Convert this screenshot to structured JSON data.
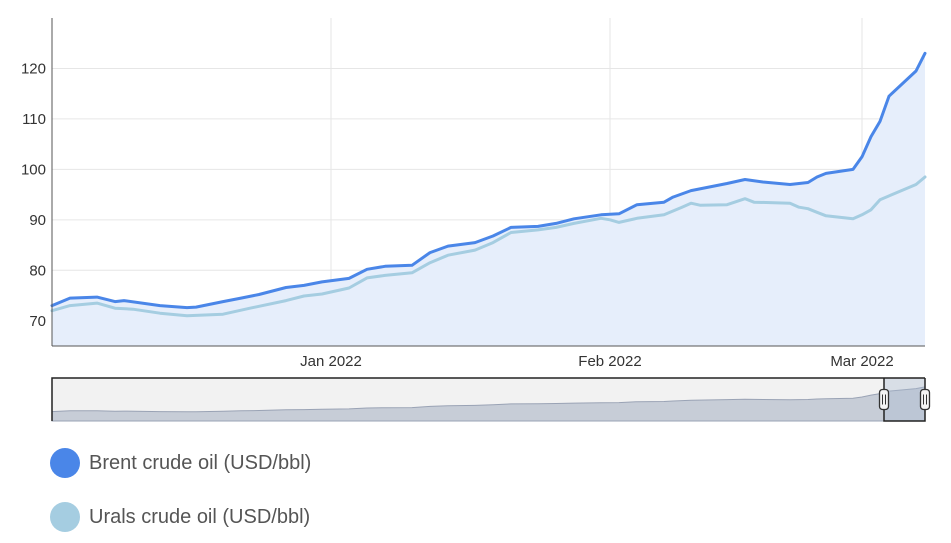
{
  "chart_data": {
    "type": "line",
    "title": "",
    "xlabel": "",
    "ylabel": "",
    "x_range": [
      "2021-12-01",
      "2022-03-08"
    ],
    "ylim": [
      65,
      130
    ],
    "y_ticks": [
      70,
      80,
      90,
      100,
      110,
      120
    ],
    "x_ticks": [
      {
        "date": "2022-01-01",
        "label": "Jan 2022"
      },
      {
        "date": "2022-02-01",
        "label": "Feb 2022"
      },
      {
        "date": "2022-03-01",
        "label": "Mar 2022"
      }
    ],
    "grid": true,
    "series": [
      {
        "name": "Brent crude oil (USD/bbl)",
        "color": "#4a86e8",
        "fill": true,
        "points": [
          [
            "2021-12-01",
            73.0
          ],
          [
            "2021-12-03",
            74.5
          ],
          [
            "2021-12-06",
            74.7
          ],
          [
            "2021-12-08",
            73.8
          ],
          [
            "2021-12-09",
            74.0
          ],
          [
            "2021-12-13",
            73.0
          ],
          [
            "2021-12-16",
            72.6
          ],
          [
            "2021-12-17",
            72.7
          ],
          [
            "2021-12-20",
            73.8
          ],
          [
            "2021-12-22",
            74.5
          ],
          [
            "2021-12-24",
            75.2
          ],
          [
            "2021-12-27",
            76.6
          ],
          [
            "2021-12-29",
            77.0
          ],
          [
            "2021-12-31",
            77.7
          ],
          [
            "2022-01-03",
            78.4
          ],
          [
            "2022-01-05",
            80.2
          ],
          [
            "2022-01-07",
            80.8
          ],
          [
            "2022-01-10",
            81.0
          ],
          [
            "2022-01-12",
            83.5
          ],
          [
            "2022-01-14",
            84.8
          ],
          [
            "2022-01-17",
            85.5
          ],
          [
            "2022-01-19",
            86.8
          ],
          [
            "2022-01-21",
            88.5
          ],
          [
            "2022-01-24",
            88.7
          ],
          [
            "2022-01-26",
            89.3
          ],
          [
            "2022-01-28",
            90.2
          ],
          [
            "2022-01-31",
            91.0
          ],
          [
            "2022-02-02",
            91.2
          ],
          [
            "2022-02-04",
            93.0
          ],
          [
            "2022-02-07",
            93.5
          ],
          [
            "2022-02-08",
            94.5
          ],
          [
            "2022-02-10",
            95.8
          ],
          [
            "2022-02-14",
            97.2
          ],
          [
            "2022-02-16",
            98.0
          ],
          [
            "2022-02-18",
            97.5
          ],
          [
            "2022-02-21",
            97.0
          ],
          [
            "2022-02-23",
            97.4
          ],
          [
            "2022-02-24",
            98.5
          ],
          [
            "2022-02-25",
            99.2
          ],
          [
            "2022-02-28",
            100.0
          ],
          [
            "2022-03-01",
            102.5
          ],
          [
            "2022-03-02",
            106.5
          ],
          [
            "2022-03-03",
            109.5
          ],
          [
            "2022-03-04",
            114.5
          ],
          [
            "2022-03-07",
            119.5
          ],
          [
            "2022-03-08",
            123.0
          ]
        ]
      },
      {
        "name": "Urals crude oil (USD/bbl)",
        "color": "#a5cde1",
        "fill": false,
        "points": [
          [
            "2021-12-01",
            72.0
          ],
          [
            "2021-12-03",
            73.0
          ],
          [
            "2021-12-06",
            73.5
          ],
          [
            "2021-12-08",
            72.5
          ],
          [
            "2021-12-10",
            72.3
          ],
          [
            "2021-12-13",
            71.5
          ],
          [
            "2021-12-16",
            71.0
          ],
          [
            "2021-12-20",
            71.3
          ],
          [
            "2021-12-23",
            72.5
          ],
          [
            "2021-12-27",
            74.0
          ],
          [
            "2021-12-29",
            74.9
          ],
          [
            "2021-12-31",
            75.3
          ],
          [
            "2022-01-03",
            76.5
          ],
          [
            "2022-01-05",
            78.5
          ],
          [
            "2022-01-07",
            79.0
          ],
          [
            "2022-01-10",
            79.5
          ],
          [
            "2022-01-12",
            81.5
          ],
          [
            "2022-01-14",
            83.0
          ],
          [
            "2022-01-17",
            84.0
          ],
          [
            "2022-01-19",
            85.5
          ],
          [
            "2022-01-21",
            87.5
          ],
          [
            "2022-01-24",
            88.0
          ],
          [
            "2022-01-26",
            88.5
          ],
          [
            "2022-01-28",
            89.3
          ],
          [
            "2022-01-31",
            90.3
          ],
          [
            "2022-02-01",
            90.0
          ],
          [
            "2022-02-02",
            89.5
          ],
          [
            "2022-02-04",
            90.3
          ],
          [
            "2022-02-07",
            91.0
          ],
          [
            "2022-02-09",
            92.5
          ],
          [
            "2022-02-10",
            93.3
          ],
          [
            "2022-02-11",
            92.9
          ],
          [
            "2022-02-14",
            93.0
          ],
          [
            "2022-02-16",
            94.2
          ],
          [
            "2022-02-17",
            93.5
          ],
          [
            "2022-02-21",
            93.3
          ],
          [
            "2022-02-22",
            92.5
          ],
          [
            "2022-02-23",
            92.2
          ],
          [
            "2022-02-24",
            91.5
          ],
          [
            "2022-02-25",
            90.8
          ],
          [
            "2022-02-28",
            90.2
          ],
          [
            "2022-03-01",
            91.0
          ],
          [
            "2022-03-02",
            92.0
          ],
          [
            "2022-03-03",
            94.0
          ],
          [
            "2022-03-07",
            97.0
          ],
          [
            "2022-03-08",
            98.5
          ]
        ]
      }
    ],
    "navigator": {
      "selected_range": [
        "2022-03-01",
        "2022-03-08"
      ]
    },
    "legend_placement": "bottom-left"
  },
  "colors": {
    "area_fill": "#e6eefb",
    "grid": "#e6e6e6",
    "axis": "#555555",
    "navigator_series": "#b5bdcc",
    "navigator_mask": "#f2f2f2"
  }
}
